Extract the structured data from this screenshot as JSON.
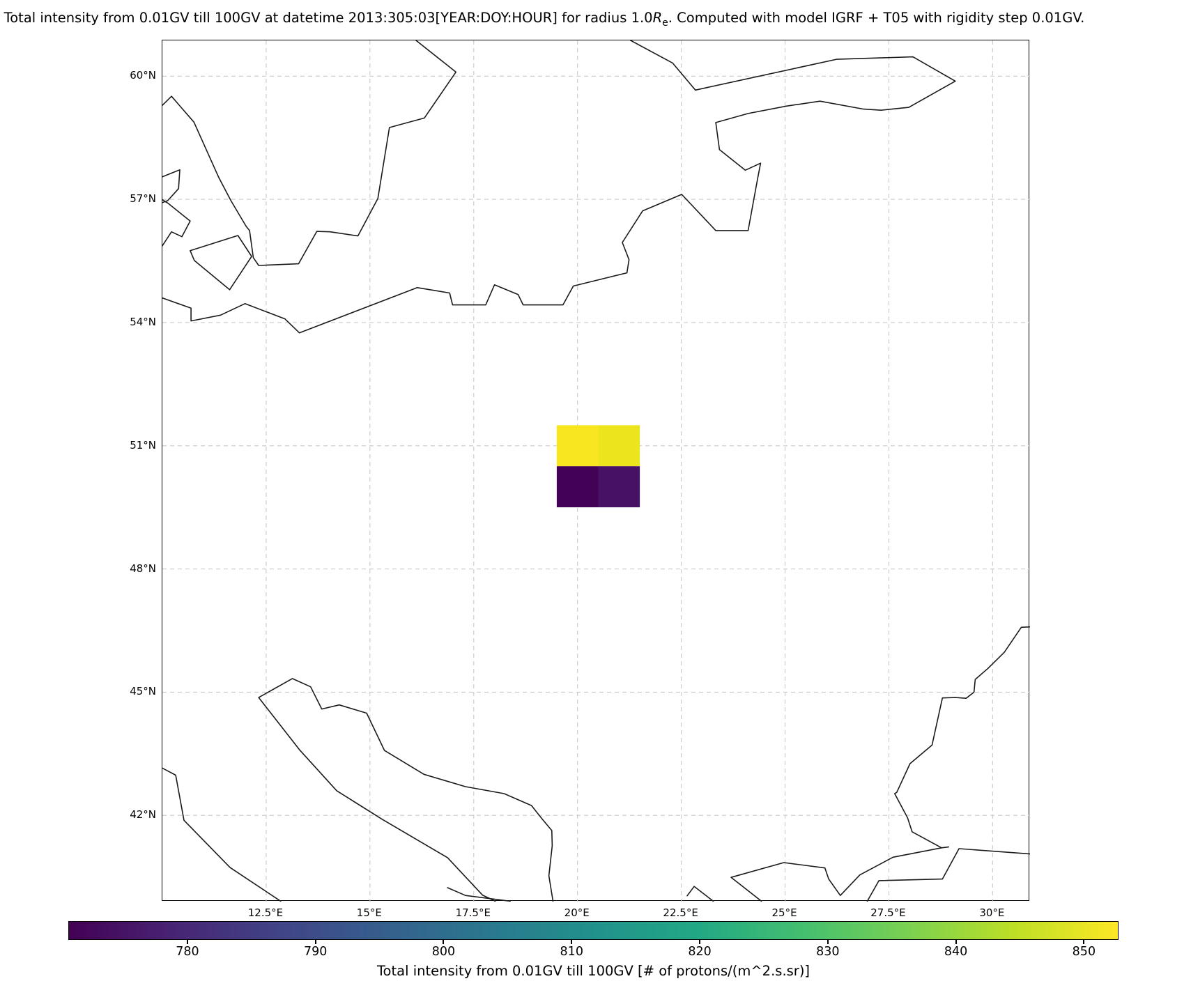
{
  "title": {
    "pre": "Total intensity from 0.01GV till 100GV at datetime 2013:305:03[YEAR:DOY:HOUR] for radius 1.0",
    "r": "R",
    "r_sub": "e",
    "post": ". Computed with model IGRF + T05 with rigidity step 0.01GV."
  },
  "map": {
    "projection": "PlateCarree",
    "extent": {
      "lon_min": 10.0,
      "lon_max": 30.9,
      "lat_min": 39.9,
      "lat_max": 60.87
    },
    "lon_ticks": [
      {
        "value": 12.5,
        "label": "12.5°E"
      },
      {
        "value": 15,
        "label": "15°E"
      },
      {
        "value": 17.5,
        "label": "17.5°E"
      },
      {
        "value": 20,
        "label": "20°E"
      },
      {
        "value": 22.5,
        "label": "22.5°E"
      },
      {
        "value": 25,
        "label": "25°E"
      },
      {
        "value": 27.5,
        "label": "27.5°E"
      },
      {
        "value": 30,
        "label": "30°E"
      }
    ],
    "lat_ticks": [
      {
        "value": 60,
        "label": "60°N"
      },
      {
        "value": 57,
        "label": "57°N"
      },
      {
        "value": 54,
        "label": "54°N"
      },
      {
        "value": 51,
        "label": "51°N"
      },
      {
        "value": 48,
        "label": "48°N"
      },
      {
        "value": 45,
        "label": "45°N"
      },
      {
        "value": 42,
        "label": "42°N"
      }
    ],
    "cells": [
      {
        "lon_min": 19.5,
        "lon_max": 20.5,
        "lat_min": 50.5,
        "lat_max": 51.5,
        "color": "#f8e621",
        "value_approx": 852
      },
      {
        "lon_min": 20.5,
        "lon_max": 21.5,
        "lat_min": 50.5,
        "lat_max": 51.5,
        "color": "#ece41d",
        "value_approx": 848
      },
      {
        "lon_min": 19.5,
        "lon_max": 20.5,
        "lat_min": 49.5,
        "lat_max": 50.5,
        "color": "#440256",
        "value_approx": 771
      },
      {
        "lon_min": 20.5,
        "lon_max": 21.5,
        "lat_min": 49.5,
        "lat_max": 50.5,
        "color": "#471266",
        "value_approx": 778
      }
    ],
    "coastlines": [
      {
        "name": "sweden",
        "points": [
          [
            10.0,
            59.29
          ],
          [
            10.22,
            59.51
          ],
          [
            10.76,
            58.88
          ],
          [
            11.36,
            57.53
          ],
          [
            11.65,
            56.97
          ],
          [
            12.02,
            56.34
          ],
          [
            12.1,
            56.24
          ],
          [
            12.19,
            55.58
          ],
          [
            12.32,
            55.39
          ],
          [
            13.28,
            55.43
          ],
          [
            13.72,
            56.22
          ],
          [
            14.04,
            56.21
          ],
          [
            14.71,
            56.11
          ],
          [
            15.19,
            57.02
          ],
          [
            15.47,
            58.75
          ],
          [
            16.31,
            58.98
          ],
          [
            17.07,
            60.1
          ],
          [
            16.11,
            60.87
          ]
        ]
      },
      {
        "name": "baltic-finland",
        "points": [
          [
            10.0,
            54.6
          ],
          [
            10.69,
            54.35
          ],
          [
            10.69,
            54.04
          ],
          [
            11.4,
            54.18
          ],
          [
            11.99,
            54.46
          ],
          [
            12.95,
            54.09
          ],
          [
            13.3,
            53.75
          ],
          [
            16.14,
            54.85
          ],
          [
            16.92,
            54.72
          ],
          [
            16.99,
            54.43
          ],
          [
            17.79,
            54.43
          ],
          [
            18.0,
            54.92
          ],
          [
            18.57,
            54.68
          ],
          [
            18.69,
            54.43
          ],
          [
            19.65,
            54.43
          ],
          [
            19.9,
            54.89
          ],
          [
            21.19,
            55.21
          ],
          [
            21.24,
            55.53
          ],
          [
            21.08,
            55.95
          ],
          [
            21.57,
            56.72
          ],
          [
            22.51,
            57.12
          ],
          [
            23.33,
            56.24
          ],
          [
            24.11,
            56.24
          ],
          [
            24.34,
            57.51
          ],
          [
            24.41,
            57.88
          ],
          [
            24.04,
            57.71
          ],
          [
            23.42,
            58.21
          ],
          [
            23.33,
            58.87
          ],
          [
            24.11,
            59.09
          ],
          [
            25.03,
            59.27
          ],
          [
            25.84,
            59.39
          ],
          [
            26.87,
            59.2
          ],
          [
            27.31,
            59.17
          ],
          [
            27.98,
            59.24
          ],
          [
            29.1,
            59.88
          ],
          [
            28.08,
            60.47
          ],
          [
            26.24,
            60.41
          ],
          [
            22.84,
            59.66
          ],
          [
            22.29,
            60.32
          ],
          [
            21.28,
            60.87
          ]
        ]
      },
      {
        "name": "skagen",
        "points": [
          [
            10.0,
            57.55
          ],
          [
            10.42,
            57.72
          ],
          [
            10.39,
            57.26
          ],
          [
            10.13,
            56.97
          ],
          [
            10.0,
            56.92
          ]
        ]
      },
      {
        "name": "jutland-east",
        "points": [
          [
            10.0,
            56.99
          ],
          [
            10.13,
            56.91
          ],
          [
            10.67,
            56.47
          ],
          [
            10.47,
            56.09
          ],
          [
            10.22,
            56.21
          ],
          [
            10.0,
            55.87
          ]
        ]
      },
      {
        "name": "zealand",
        "points": [
          [
            10.67,
            55.75
          ],
          [
            11.82,
            56.12
          ],
          [
            12.15,
            55.61
          ],
          [
            11.62,
            54.8
          ],
          [
            10.77,
            55.51
          ],
          [
            10.67,
            55.75
          ]
        ]
      },
      {
        "name": "italy-west",
        "points": [
          [
            10.0,
            43.15
          ],
          [
            10.32,
            42.98
          ],
          [
            10.52,
            41.88
          ],
          [
            11.63,
            40.73
          ],
          [
            12.85,
            39.91
          ]
        ]
      },
      {
        "name": "adriatic",
        "points": [
          [
            18.02,
            39.91
          ],
          [
            17.71,
            40.06
          ],
          [
            16.87,
            40.97
          ],
          [
            15.3,
            41.9
          ],
          [
            14.2,
            42.6
          ],
          [
            13.3,
            43.6
          ],
          [
            12.32,
            44.87
          ],
          [
            13.13,
            45.33
          ],
          [
            13.57,
            45.13
          ],
          [
            13.84,
            44.59
          ],
          [
            14.26,
            44.69
          ],
          [
            14.92,
            44.49
          ],
          [
            15.35,
            43.58
          ],
          [
            16.3,
            43.0
          ],
          [
            17.3,
            42.7
          ],
          [
            18.23,
            42.53
          ],
          [
            18.89,
            42.24
          ],
          [
            19.14,
            41.92
          ],
          [
            19.38,
            41.63
          ],
          [
            19.39,
            41.26
          ],
          [
            19.31,
            40.53
          ],
          [
            19.41,
            39.91
          ]
        ]
      },
      {
        "name": "taranto",
        "points": [
          [
            16.87,
            40.24
          ],
          [
            17.3,
            40.05
          ],
          [
            18.38,
            39.91
          ]
        ]
      },
      {
        "name": "thermaic-gulf",
        "points": [
          [
            22.64,
            40.04
          ],
          [
            22.81,
            40.27
          ],
          [
            23.27,
            39.91
          ]
        ]
      },
      {
        "name": "thrace-marmara-north",
        "points": [
          [
            24.43,
            39.91
          ],
          [
            23.7,
            40.49
          ],
          [
            24.97,
            40.85
          ],
          [
            25.96,
            40.72
          ],
          [
            26.05,
            40.45
          ],
          [
            26.33,
            40.05
          ],
          [
            26.8,
            40.55
          ],
          [
            27.6,
            40.98
          ],
          [
            28.77,
            41.21
          ]
        ]
      },
      {
        "name": "blacksea-west",
        "points": [
          [
            30.9,
            46.59
          ],
          [
            30.69,
            46.58
          ],
          [
            30.28,
            45.97
          ],
          [
            29.89,
            45.58
          ],
          [
            29.58,
            45.31
          ],
          [
            29.55,
            45.0
          ],
          [
            29.36,
            44.85
          ],
          [
            29.1,
            44.87
          ],
          [
            28.79,
            44.86
          ],
          [
            28.54,
            43.71
          ],
          [
            28.01,
            43.26
          ],
          [
            27.69,
            42.56
          ],
          [
            27.64,
            42.53
          ],
          [
            27.95,
            41.94
          ],
          [
            28.06,
            41.6
          ],
          [
            28.77,
            41.21
          ],
          [
            28.94,
            41.23
          ]
        ]
      },
      {
        "name": "marmara-south",
        "points": [
          [
            26.98,
            39.91
          ],
          [
            27.26,
            40.41
          ],
          [
            28.79,
            40.45
          ],
          [
            29.06,
            40.95
          ],
          [
            29.19,
            41.19
          ],
          [
            30.9,
            41.06
          ]
        ]
      }
    ]
  },
  "colorbar": {
    "vmin": 770.7,
    "vmax": 852.7,
    "ticks": [
      "780",
      "790",
      "800",
      "810",
      "820",
      "830",
      "840",
      "850"
    ],
    "label": "Total intensity from 0.01GV till 100GV [# of protons/(m^2.s.sr)]",
    "colormap": "viridis",
    "viridis_stops": [
      "#440154",
      "#482475",
      "#414487",
      "#355f8d",
      "#2a788e",
      "#21918c",
      "#22a884",
      "#44bf70",
      "#7ad151",
      "#bddf26",
      "#fde725"
    ]
  },
  "chart_data": {
    "type": "heatmap",
    "title": "Total intensity from 0.01GV till 100GV at datetime 2013:305:03[YEAR:DOY:HOUR] for radius 1.0Re. Computed with model IGRF + T05 with rigidity step 0.01GV.",
    "projection": "PlateCarree",
    "extent_lon": [
      10.0,
      30.9
    ],
    "extent_lat": [
      39.9,
      60.87
    ],
    "x_tick_labels": [
      "12.5°E",
      "15°E",
      "17.5°E",
      "20°E",
      "22.5°E",
      "25°E",
      "27.5°E",
      "30°E"
    ],
    "y_tick_labels": [
      "60°N",
      "57°N",
      "54°N",
      "51°N",
      "48°N",
      "45°N",
      "42°N"
    ],
    "grid": "dashed",
    "colormap": "viridis",
    "colorbar_label": "Total intensity from 0.01GV till 100GV [# of protons/(m^2.s.sr)]",
    "colorbar_range": [
      770.7,
      852.7
    ],
    "colorbar_ticks": [
      780,
      790,
      800,
      810,
      820,
      830,
      840,
      850
    ],
    "cells": [
      {
        "lon_center": 20,
        "lat_center": 51,
        "value_approx": 852
      },
      {
        "lon_center": 21,
        "lat_center": 51,
        "value_approx": 848
      },
      {
        "lon_center": 20,
        "lat_center": 50,
        "value_approx": 771
      },
      {
        "lon_center": 21,
        "lat_center": 50,
        "value_approx": 778
      }
    ],
    "legend_position": "bottom-horizontal-colorbar",
    "base_layer": "coastlines-only"
  }
}
